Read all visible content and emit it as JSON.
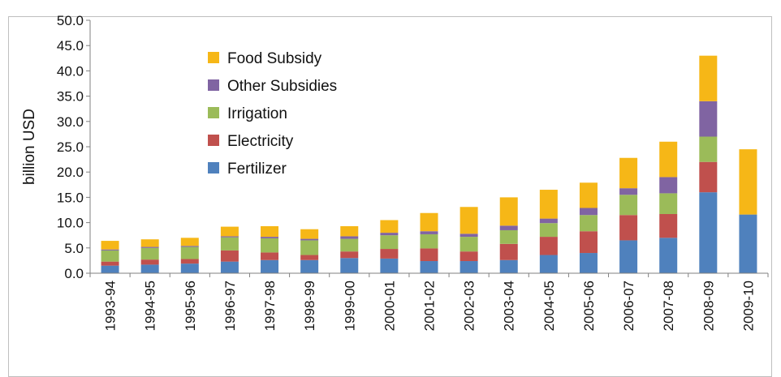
{
  "chart_data": {
    "type": "bar",
    "stacked": true,
    "ylabel": "billion USD",
    "ylim": [
      0,
      50
    ],
    "ytick_values": [
      0,
      5,
      10,
      15,
      20,
      25,
      30,
      35,
      40,
      45,
      50
    ],
    "ytick_labels": [
      "0.0",
      "5.0",
      "10.0",
      "15.0",
      "20.0",
      "25.0",
      "30.0",
      "35.0",
      "40.0",
      "45.0",
      "50.0"
    ],
    "categories": [
      "1993-94",
      "1994-95",
      "1995-96",
      "1996-97",
      "1997-98",
      "1998-99",
      "1999-00",
      "2000-01",
      "2001-02",
      "2002-03",
      "2003-04",
      "2004-05",
      "2005-06",
      "2006-07",
      "2007-08",
      "2008-09",
      "2009-10"
    ],
    "series": [
      {
        "name": "Fertilizer",
        "color": "#4F81BD",
        "values": [
          1.5,
          1.7,
          1.9,
          2.3,
          2.6,
          2.6,
          3.0,
          2.9,
          2.4,
          2.4,
          2.6,
          3.6,
          4.0,
          6.5,
          7.0,
          16.0,
          11.6
        ]
      },
      {
        "name": "Electricity",
        "color": "#C0504D",
        "values": [
          0.8,
          1.0,
          0.9,
          2.2,
          1.5,
          1.0,
          1.3,
          1.9,
          2.5,
          1.9,
          3.2,
          3.6,
          4.3,
          5.0,
          4.7,
          6.0,
          0.0
        ]
      },
      {
        "name": "Irrigation",
        "color": "#9BBB59",
        "values": [
          2.2,
          2.3,
          2.4,
          2.6,
          2.8,
          2.9,
          2.5,
          2.7,
          2.8,
          2.9,
          2.7,
          2.7,
          3.2,
          4.0,
          4.1,
          5.0,
          0.0
        ]
      },
      {
        "name": "Other Subsidies",
        "color": "#8064A2",
        "values": [
          0.2,
          0.2,
          0.2,
          0.2,
          0.3,
          0.3,
          0.5,
          0.5,
          0.6,
          0.6,
          0.9,
          0.9,
          1.4,
          1.3,
          3.2,
          7.0,
          0.0
        ]
      },
      {
        "name": "Food Subsidy",
        "color": "#F6B717",
        "values": [
          1.7,
          1.5,
          1.6,
          1.9,
          2.1,
          1.9,
          2.0,
          2.5,
          3.6,
          5.3,
          5.6,
          5.7,
          5.0,
          6.0,
          7.0,
          9.0,
          12.9
        ]
      }
    ],
    "legend_order": [
      "Food Subsidy",
      "Other Subsidies",
      "Irrigation",
      "Electricity",
      "Fertilizer"
    ],
    "legend_position": "top-left",
    "grid": false
  }
}
